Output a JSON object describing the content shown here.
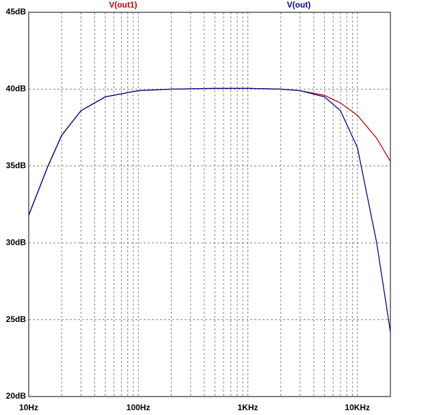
{
  "chart_data": {
    "type": "line",
    "log_x": true,
    "grid": true,
    "x": [
      10,
      15,
      20,
      30,
      50,
      100,
      200,
      500,
      1000,
      2000,
      3000,
      5000,
      7000,
      10000,
      15000,
      20000
    ],
    "series": [
      {
        "name": "V(out1)",
        "color": "#c00000",
        "values": [
          31.8,
          35.0,
          37.0,
          38.6,
          39.5,
          39.9,
          40.0,
          40.05,
          40.05,
          40.0,
          39.9,
          39.6,
          39.1,
          38.3,
          36.8,
          35.3
        ]
      },
      {
        "name": "V(out)",
        "color": "#000090",
        "values": [
          31.8,
          35.0,
          37.0,
          38.6,
          39.5,
          39.9,
          40.0,
          40.05,
          40.05,
          40.0,
          39.9,
          39.5,
          38.6,
          36.2,
          30.0,
          24.2
        ]
      }
    ],
    "xlim": [
      10,
      20000
    ],
    "xticks": [
      {
        "value": 10,
        "label": "10Hz"
      },
      {
        "value": 100,
        "label": "100Hz"
      },
      {
        "value": 1000,
        "label": "1KHz"
      },
      {
        "value": 10000,
        "label": "10KHz"
      }
    ],
    "xminor": [
      20,
      30,
      40,
      50,
      60,
      70,
      80,
      90,
      200,
      300,
      400,
      500,
      600,
      700,
      800,
      900,
      2000,
      3000,
      4000,
      5000,
      6000,
      7000,
      8000,
      9000
    ],
    "ylim": [
      20,
      45
    ],
    "yticks": [
      {
        "value": 20,
        "label": "20dB"
      },
      {
        "value": 25,
        "label": "25dB"
      },
      {
        "value": 30,
        "label": "30dB"
      },
      {
        "value": 35,
        "label": "35dB"
      },
      {
        "value": 40,
        "label": "40dB"
      },
      {
        "value": 45,
        "label": "45dB"
      }
    ]
  }
}
